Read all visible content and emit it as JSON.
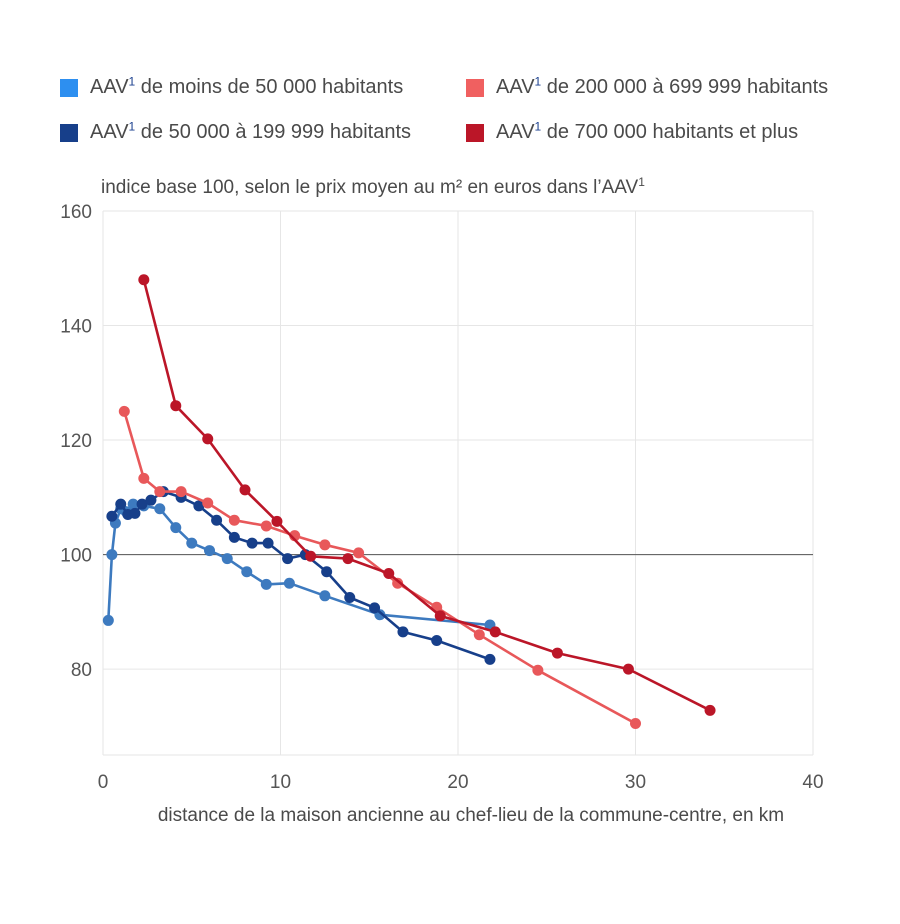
{
  "chart_data": {
    "type": "line",
    "ylabel": "indice base 100, selon le prix moyen au m² en euros dans l’AAV",
    "ylabel_sup": "1",
    "xlabel": "distance de la maison ancienne au chef-lieu de la commune-centre, en km",
    "xlim": [
      0,
      40
    ],
    "ylim": [
      65,
      160
    ],
    "xticks": [
      0,
      10,
      20,
      30,
      40
    ],
    "yticks": [
      80,
      100,
      120,
      140,
      160
    ],
    "reference_line": 100,
    "grid": true,
    "series": [
      {
        "name": "AAV",
        "name_sup": "1",
        "name_rest": " de moins de 50 000 habitants",
        "color": "#3d7abf",
        "legend_color": "#2d8ff0",
        "x": [
          0.3,
          0.5,
          0.7,
          1.0,
          1.3,
          1.7,
          2.3,
          3.2,
          4.1,
          5.0,
          6.0,
          7.0,
          8.1,
          9.2,
          10.5,
          12.5,
          15.6,
          21.8
        ],
        "y": [
          88.5,
          100.0,
          105.5,
          108.0,
          107.5,
          108.8,
          108.5,
          108.0,
          104.7,
          102.0,
          100.7,
          99.3,
          97.0,
          94.8,
          95.0,
          92.8,
          89.5,
          87.7
        ]
      },
      {
        "name": "AAV",
        "name_sup": "1",
        "name_rest": " de 50 000 à 199 999 habitants",
        "color": "#173f8a",
        "legend_color": "#173f8a",
        "x": [
          0.5,
          1.0,
          1.4,
          1.8,
          2.2,
          2.7,
          3.4,
          4.4,
          5.4,
          6.4,
          7.4,
          8.4,
          9.3,
          10.4,
          11.4,
          12.6,
          13.9,
          15.3,
          16.9,
          18.8,
          21.8
        ],
        "y": [
          106.7,
          108.8,
          107.0,
          107.2,
          108.8,
          109.5,
          111.0,
          110.0,
          108.5,
          106.0,
          103.0,
          102.0,
          102.0,
          99.3,
          100.0,
          97.0,
          92.5,
          90.7,
          86.5,
          85.0,
          81.7
        ]
      },
      {
        "name": "AAV",
        "name_sup": "1",
        "name_rest": " de 200 000 à 699 999 habitants",
        "color": "#e8585a",
        "legend_color": "#f06060",
        "x": [
          1.2,
          2.3,
          3.2,
          4.4,
          5.9,
          7.4,
          9.2,
          10.8,
          12.5,
          14.4,
          16.6,
          18.8,
          21.2,
          24.5,
          30.0
        ],
        "y": [
          125.0,
          113.3,
          111.0,
          111.0,
          109.0,
          106.0,
          105.0,
          103.3,
          101.7,
          100.3,
          95.0,
          90.8,
          86.0,
          79.8,
          70.5
        ]
      },
      {
        "name": "AAV",
        "name_sup": "1",
        "name_rest": " de 700 000 habitants et plus",
        "color": "#bb1628",
        "legend_color": "#bb1628",
        "x": [
          2.3,
          4.1,
          5.9,
          8.0,
          9.8,
          11.7,
          13.8,
          16.1,
          19.0,
          22.1,
          25.6,
          29.6,
          34.2
        ],
        "y": [
          148.0,
          126.0,
          120.2,
          111.3,
          105.8,
          99.7,
          99.3,
          96.7,
          89.3,
          86.5,
          82.8,
          80.0,
          72.8
        ]
      }
    ]
  }
}
